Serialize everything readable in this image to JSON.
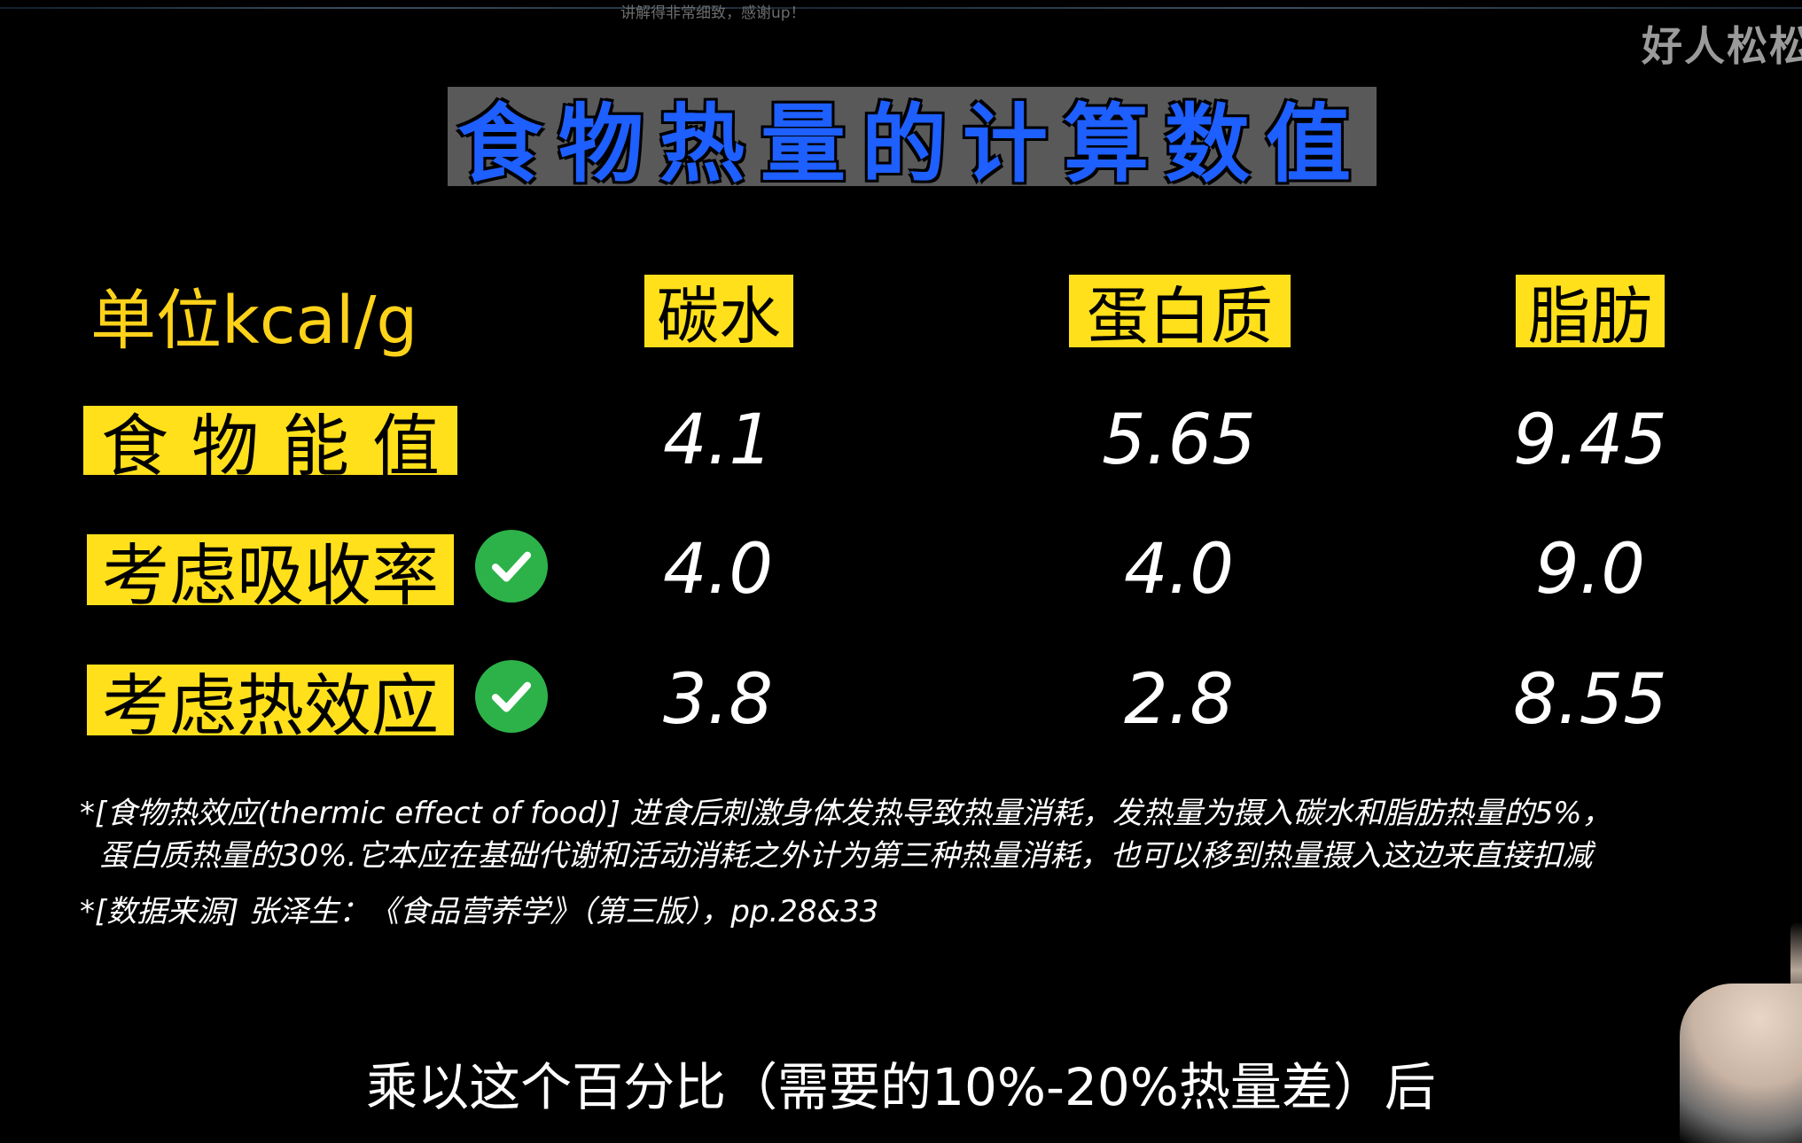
{
  "overlay": {
    "danmaku": "讲解得非常细致，感谢up！",
    "watermark": "好人松松"
  },
  "slide": {
    "title": "食物热量的计算数值",
    "unit_label": "单位kcal/g",
    "columns": [
      "碳水",
      "蛋白质",
      "脂肪"
    ],
    "rows": [
      {
        "label": "食物能值",
        "checked": false,
        "values": [
          "4.1",
          "5.65",
          "9.45"
        ]
      },
      {
        "label": "考虑吸收率",
        "checked": true,
        "values": [
          "4.0",
          "4.0",
          "9.0"
        ]
      },
      {
        "label": "考虑热效应",
        "checked": true,
        "values": [
          "3.8",
          "2.8",
          "8.55"
        ]
      }
    ],
    "notes": [
      "*[食物热效应(thermic effect of food)] 进食后刺激身体发热导致热量消耗，发热量为摄入碳水和脂肪热量的5%，",
      "蛋白质热量的30%.它本应在基础代谢和活动消耗之外计为第三种热量消耗，也可以移到热量摄入这边来直接扣减",
      "*[数据来源] 张泽生：《食品营养学》（第三版），pp.28&33"
    ],
    "colors": {
      "title_text": "#1e5fff",
      "title_bg": "#595959",
      "highlight": "#ffe01b",
      "unit_label": "#ffd21a",
      "check": "#2db24a"
    }
  },
  "subtitle": "乘以这个百分比（需要的10%-20%热量差）后"
}
